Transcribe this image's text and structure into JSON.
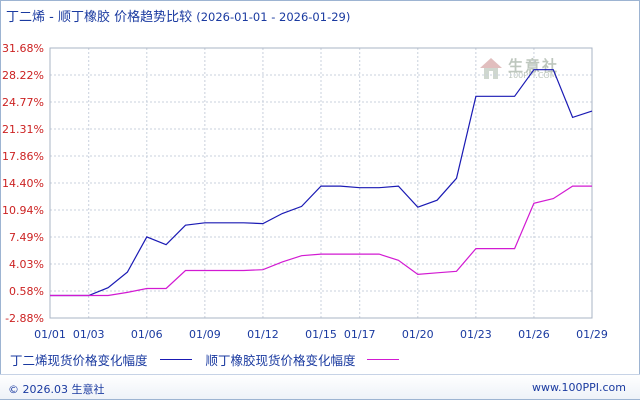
{
  "header": {
    "title": "丁二烯 - 顺丁橡胶 价格趋势比较",
    "date_range": "(2026-01-01 - 2026-01-29)"
  },
  "watermark": {
    "text": "生意社",
    "url": "100PPI.COM"
  },
  "legend": {
    "series1": "丁二烯现货价格变化幅度",
    "series2": "顺丁橡胶现货价格变化幅度"
  },
  "footer": {
    "left": "© 2026.03 生意社",
    "right": "www.100PPI.com"
  },
  "colors": {
    "series1": "#1a1ab4",
    "series2": "#d21ad2",
    "axis_label": "#cc2222",
    "text": "#1a3aa0"
  },
  "chart_data": {
    "type": "line",
    "title": "丁二烯 - 顺丁橡胶 价格趋势比较",
    "ylim": [
      -2.88,
      31.68
    ],
    "yticks": [
      "31.68%",
      "28.22%",
      "24.77%",
      "21.31%",
      "17.86%",
      "14.40%",
      "10.94%",
      "7.49%",
      "4.03%",
      "0.58%",
      "-2.88%"
    ],
    "xticks": [
      "01/01",
      "01/03",
      "01/06",
      "01/09",
      "01/12",
      "01/15",
      "01/17",
      "01/20",
      "01/23",
      "01/26",
      "01/29"
    ],
    "x": [
      "01/01",
      "01/02",
      "01/03",
      "01/04",
      "01/05",
      "01/06",
      "01/07",
      "01/08",
      "01/09",
      "01/10",
      "01/11",
      "01/12",
      "01/13",
      "01/14",
      "01/15",
      "01/16",
      "01/17",
      "01/18",
      "01/19",
      "01/20",
      "01/21",
      "01/22",
      "01/23",
      "01/24",
      "01/25",
      "01/26",
      "01/27",
      "01/28",
      "01/29"
    ],
    "grid": true,
    "series": [
      {
        "name": "丁二烯现货价格变化幅度",
        "values": [
          0,
          0,
          0,
          1,
          3,
          7.5,
          6.5,
          9,
          9.3,
          9.3,
          9.3,
          9.2,
          10.5,
          11.4,
          14,
          14,
          13.8,
          13.8,
          14,
          11.3,
          12.2,
          15,
          25.5,
          25.5,
          25.5,
          28.9,
          28.9,
          22.8,
          23.6
        ]
      },
      {
        "name": "顺丁橡胶现货价格变化幅度",
        "values": [
          0,
          0,
          0,
          0,
          0.4,
          0.9,
          0.9,
          3.2,
          3.2,
          3.2,
          3.2,
          3.3,
          4.3,
          5.1,
          5.3,
          5.3,
          5.3,
          5.3,
          4.5,
          2.7,
          2.9,
          3.1,
          6,
          6,
          6,
          11.8,
          12.4,
          14,
          14
        ]
      }
    ]
  }
}
